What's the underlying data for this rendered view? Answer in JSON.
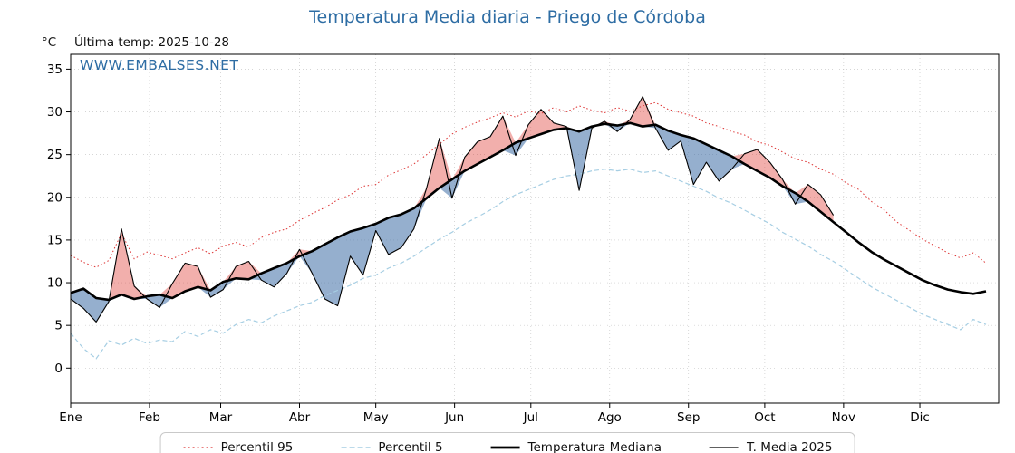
{
  "header": {
    "title": "Temperatura Media diaria - Priego de Córdoba",
    "unit_label": "°C",
    "last_temp_label": "Última temp: 2025-10-28",
    "watermark": "WWW.EMBALSES.NET"
  },
  "colors": {
    "title_blue": "#2e6da4",
    "p95_red": "#dd3333",
    "p5_blue": "#a6cee3",
    "line_black": "#000000",
    "fill_above": "rgba(222,45,38,0.38)",
    "fill_below": "rgba(62,110,165,0.55)",
    "grid": "#bbbbbb"
  },
  "legend": {
    "items": [
      {
        "label": "Percentil 95",
        "color": "#dd3333",
        "dash": "2 3",
        "width": 1.2
      },
      {
        "label": "Percentil 5",
        "color": "#a6cee3",
        "dash": "6 3",
        "width": 1.4
      },
      {
        "label": "Temperatura Mediana",
        "color": "#000000",
        "dash": "",
        "width": 2.8
      },
      {
        "label": "T. Media 2025",
        "color": "#000000",
        "dash": "",
        "width": 1.2
      }
    ]
  },
  "axes": {
    "yticks": [
      0,
      5,
      10,
      15,
      20,
      25,
      30,
      35
    ],
    "ylim": [
      -4.1,
      36.7
    ],
    "months": [
      "Ene",
      "Feb",
      "Mar",
      "Abr",
      "May",
      "Jun",
      "Jul",
      "Ago",
      "Sep",
      "Oct",
      "Nov",
      "Dic"
    ],
    "month_start_days": [
      0,
      31,
      59,
      90,
      120,
      151,
      181,
      212,
      243,
      273,
      304,
      334
    ],
    "days_in_year": 365
  },
  "chart_data": {
    "type": "line",
    "title": "Temperatura Media diaria - Priego de Córdoba",
    "ylabel": "°C",
    "x_unit": "day_of_year",
    "x_days": [
      0,
      5,
      10,
      15,
      20,
      25,
      30,
      35,
      40,
      45,
      50,
      55,
      60,
      65,
      70,
      75,
      80,
      85,
      90,
      95,
      100,
      105,
      110,
      115,
      120,
      125,
      130,
      135,
      140,
      145,
      150,
      155,
      160,
      165,
      170,
      175,
      180,
      185,
      190,
      195,
      200,
      205,
      210,
      215,
      220,
      225,
      230,
      235,
      240,
      245,
      250,
      255,
      260,
      265,
      270,
      275,
      280,
      285,
      290,
      295,
      300,
      305,
      310,
      315,
      320,
      325,
      330,
      335,
      340,
      345,
      350,
      355,
      360
    ],
    "series": [
      {
        "name": "Percentil 95",
        "style": "red dotted thin",
        "values": [
          13.2,
          12.4,
          11.8,
          12.6,
          15.8,
          12.8,
          13.6,
          13.2,
          12.8,
          13.5,
          14.1,
          13.4,
          14.3,
          14.7,
          14.2,
          15.3,
          15.9,
          16.3,
          17.3,
          18.1,
          18.8,
          19.7,
          20.3,
          21.3,
          21.5,
          22.6,
          23.2,
          23.9,
          25.0,
          26.2,
          27.4,
          28.2,
          28.8,
          29.3,
          29.9,
          29.4,
          30.1,
          29.8,
          30.5,
          30.0,
          30.7,
          30.2,
          29.9,
          30.5,
          30.1,
          30.7,
          31.1,
          30.3,
          29.9,
          29.5,
          28.7,
          28.3,
          27.7,
          27.3,
          26.5,
          26.1,
          25.3,
          24.5,
          24.1,
          23.3,
          22.7,
          21.7,
          20.9,
          19.5,
          18.5,
          17.1,
          16.1,
          15.1,
          14.3,
          13.5,
          12.9,
          13.5,
          12.3
        ]
      },
      {
        "name": "Percentil 5",
        "style": "light blue dashed thin",
        "values": [
          4.1,
          2.3,
          1.1,
          3.2,
          2.7,
          3.5,
          2.9,
          3.3,
          3.1,
          4.3,
          3.7,
          4.5,
          4.1,
          5.1,
          5.7,
          5.3,
          6.1,
          6.7,
          7.3,
          7.7,
          8.5,
          9.1,
          9.7,
          10.5,
          10.9,
          11.7,
          12.3,
          13.1,
          14.1,
          15.1,
          15.9,
          16.9,
          17.7,
          18.5,
          19.5,
          20.3,
          20.9,
          21.5,
          22.1,
          22.5,
          22.7,
          23.1,
          23.3,
          23.1,
          23.3,
          22.9,
          23.1,
          22.5,
          21.9,
          21.3,
          20.7,
          19.9,
          19.3,
          18.5,
          17.7,
          16.9,
          15.9,
          15.1,
          14.3,
          13.3,
          12.5,
          11.5,
          10.5,
          9.5,
          8.7,
          7.9,
          7.1,
          6.3,
          5.7,
          5.1,
          4.5,
          5.7,
          5.1
        ]
      },
      {
        "name": "Temperatura Mediana",
        "style": "black thick solid",
        "values": [
          8.8,
          9.3,
          8.2,
          8.0,
          8.6,
          8.1,
          8.4,
          8.6,
          8.2,
          9.0,
          9.5,
          9.1,
          10.1,
          10.5,
          10.4,
          11.1,
          11.7,
          12.3,
          13.1,
          13.7,
          14.5,
          15.3,
          16.0,
          16.4,
          16.9,
          17.6,
          18.0,
          18.7,
          19.9,
          21.1,
          22.1,
          23.1,
          23.9,
          24.7,
          25.5,
          26.4,
          26.9,
          27.4,
          27.9,
          28.1,
          27.7,
          28.3,
          28.6,
          28.4,
          28.7,
          28.3,
          28.5,
          27.8,
          27.3,
          26.9,
          26.2,
          25.5,
          24.8,
          23.9,
          23.1,
          22.3,
          21.3,
          20.5,
          19.5,
          18.3,
          17.1,
          15.9,
          14.7,
          13.6,
          12.7,
          11.9,
          11.1,
          10.3,
          9.7,
          9.2,
          8.9,
          8.7,
          9.0
        ]
      },
      {
        "name": "T. Media 2025",
        "style": "black thin solid, shaded red above mediana and blue below",
        "ends_at_day": 300,
        "values": [
          8.1,
          7.0,
          5.4,
          7.8,
          16.3,
          9.6,
          8.1,
          7.1,
          9.9,
          12.3,
          11.9,
          8.3,
          9.2,
          11.9,
          12.5,
          10.3,
          9.5,
          11.1,
          13.9,
          11.1,
          8.1,
          7.3,
          13.1,
          10.9,
          16.1,
          13.3,
          14.1,
          16.3,
          21.1,
          26.9,
          19.9,
          24.7,
          26.5,
          27.1,
          29.5,
          24.9,
          28.5,
          30.3,
          28.7,
          28.3,
          20.8,
          28.1,
          28.9,
          27.7,
          29.1,
          31.8,
          28.1,
          25.5,
          26.6,
          21.5,
          24.1,
          21.9,
          23.3,
          25.1,
          25.6,
          24.1,
          22.1,
          19.2,
          21.5,
          20.3,
          17.9
        ]
      }
    ],
    "fills": {
      "above_median": "red shading where T. Media 2025 > Temperatura Mediana",
      "below_median": "blue shading where T. Media 2025 < Temperatura Mediana"
    }
  }
}
